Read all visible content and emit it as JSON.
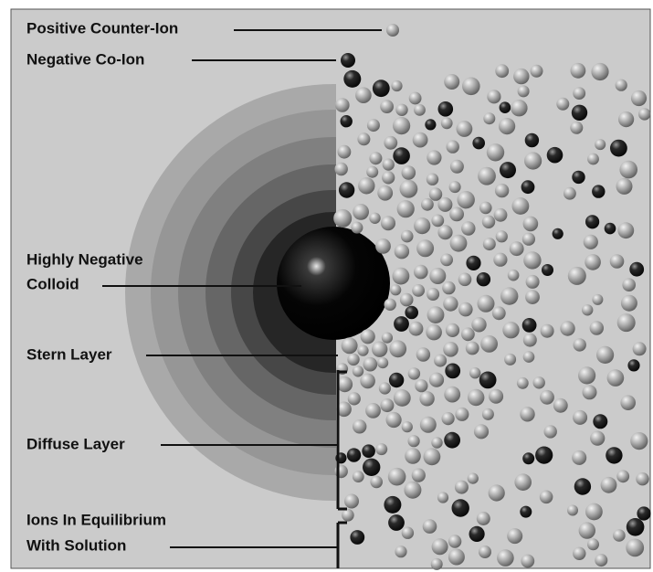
{
  "labels": [
    {
      "lines": [
        "Positive Counter-Ion"
      ]
    },
    {
      "lines": [
        "Negative Co-Ion"
      ]
    },
    {
      "lines": [
        "Highly Negative",
        "Colloid"
      ]
    },
    {
      "lines": [
        "Stern Layer"
      ]
    },
    {
      "lines": [
        "Diffuse Layer"
      ]
    },
    {
      "lines": [
        "Ions In Equilibrium",
        "With Solution"
      ]
    }
  ]
}
